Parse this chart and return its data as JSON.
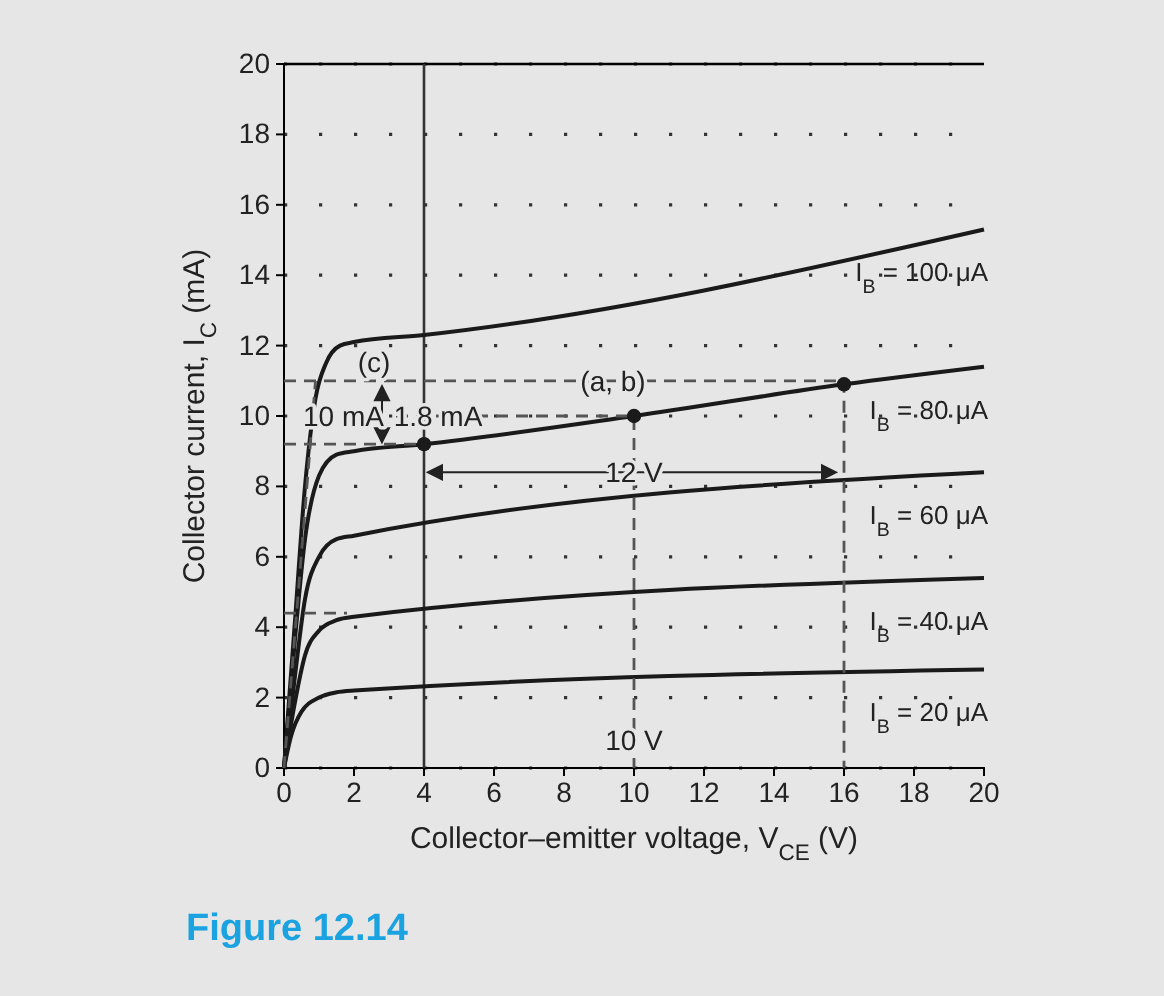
{
  "chart_data": {
    "type": "line",
    "title": "Figure 12.14",
    "xlabel": "Collector–emitter voltage, V$_{CE}$ (V)",
    "ylabel": "Collector current, I$_{C}$ (mA)",
    "xlim": [
      0,
      20
    ],
    "ylim": [
      0,
      20
    ],
    "xticks": [
      0,
      2,
      4,
      6,
      8,
      10,
      12,
      14,
      16,
      18,
      20
    ],
    "yticks": [
      0,
      2,
      4,
      6,
      8,
      10,
      12,
      14,
      16,
      18,
      20
    ],
    "grid": true,
    "legend": false,
    "ref_lines": [
      {
        "axis": "x",
        "value": 4,
        "color": "#333333",
        "line_style": "solid"
      }
    ],
    "series": [
      {
        "name": "I$_{B}$ = 100 μA",
        "color": "#1a1a1a",
        "x": [
          0,
          0.3,
          0.6,
          0.9,
          1.2,
          1.6,
          2,
          4,
          20
        ],
        "values": [
          0,
          4,
          8,
          10.5,
          11.5,
          12,
          12.1,
          12.3,
          15.3
        ]
      },
      {
        "name": "I$_{B}$ = 80 μA",
        "color": "#1a1a1a",
        "x": [
          0,
          0.3,
          0.6,
          1,
          1.5,
          2,
          4,
          10,
          16,
          20
        ],
        "values": [
          0,
          3.5,
          6.5,
          8.3,
          8.9,
          9,
          9.2,
          10,
          10.9,
          11.4
        ]
      },
      {
        "name": "I$_{B}$ = 60 μA",
        "color": "#1a1a1a",
        "x": [
          0,
          0.3,
          0.6,
          1,
          1.5,
          2,
          20
        ],
        "values": [
          0,
          2.5,
          4.8,
          6,
          6.5,
          6.6,
          8.4
        ]
      },
      {
        "name": "I$_{B}$ = 40 μA",
        "color": "#1a1a1a",
        "x": [
          0,
          0.3,
          0.6,
          1,
          1.5,
          2,
          20
        ],
        "values": [
          0,
          1.8,
          3.2,
          3.9,
          4.2,
          4.3,
          5.4
        ]
      },
      {
        "name": "I$_{B}$ = 20 μA",
        "color": "#1a1a1a",
        "x": [
          0,
          0.2,
          0.5,
          1,
          1.5,
          2,
          20
        ],
        "values": [
          0,
          0.9,
          1.6,
          2,
          2.15,
          2.2,
          2.8
        ]
      },
      {
        "color": "#555555",
        "line_style": "dashed",
        "x": [
          0,
          0.9
        ],
        "values": [
          0,
          11
        ]
      },
      {
        "color": "#555555",
        "line_style": "dashed",
        "x": [
          0,
          16,
          16
        ],
        "values": [
          11,
          11,
          0
        ]
      },
      {
        "color": "#555555",
        "line_style": "dashed",
        "x": [
          3.2,
          10,
          10
        ],
        "values": [
          10,
          10,
          0
        ]
      },
      {
        "color": "#555555",
        "line_style": "dashed",
        "x": [
          0,
          4
        ],
        "values": [
          9.2,
          9.2
        ]
      },
      {
        "color": "#555555",
        "line_style": "dashed",
        "x": [
          0,
          1.8
        ],
        "values": [
          4.4,
          4.4
        ]
      },
      {
        "type": "scatter",
        "color": "#1a1a1a",
        "marker": "circle",
        "x": [
          4,
          10,
          16
        ],
        "values": [
          9.2,
          10,
          10.9
        ]
      }
    ],
    "annotations": [
      "(c)",
      {
        "text": "(a, b)",
        "x": 9.4,
        "y": 11
      },
      "10 mA",
      {
        "text": "1.8 mA",
        "x": 4.4,
        "y": 10
      },
      {
        "text": "12 V",
        "x": 10,
        "y": 8.4
      },
      {
        "text": "10 V",
        "x": 10,
        "y": 0.8
      }
    ]
  }
}
